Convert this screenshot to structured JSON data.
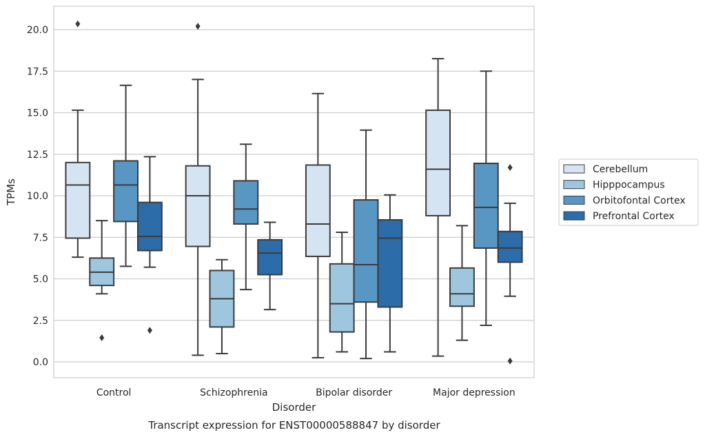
{
  "chart_data": {
    "type": "box",
    "title": "Transcript expression for ENST00000588847 by disorder",
    "xlabel": "Disorder",
    "ylabel": "TPMs",
    "ylim": [
      -0.95,
      21.4
    ],
    "yticks": [
      "0.0",
      "2.5",
      "5.0",
      "7.5",
      "10.0",
      "12.5",
      "15.0",
      "17.5",
      "20.0"
    ],
    "grid": "horizontal",
    "legend_position": "right",
    "categories": [
      "Control",
      "Schizophrenia",
      "Bipolar disorder",
      "Major depression"
    ],
    "series": [
      {
        "name": "Cerebellum",
        "color": "#d5e4f2",
        "boxes": [
          {
            "whisker_low": 6.3,
            "q1": 7.45,
            "median": 10.65,
            "q3": 12.0,
            "whisker_high": 15.15,
            "outliers": [
              20.35
            ]
          },
          {
            "whisker_low": 0.4,
            "q1": 6.95,
            "median": 10.0,
            "q3": 11.8,
            "whisker_high": 17.0,
            "outliers": [
              20.2
            ]
          },
          {
            "whisker_low": 0.25,
            "q1": 6.35,
            "median": 8.3,
            "q3": 11.85,
            "whisker_high": 16.15,
            "outliers": []
          },
          {
            "whisker_low": 0.35,
            "q1": 8.8,
            "median": 11.6,
            "q3": 15.15,
            "whisker_high": 18.25,
            "outliers": []
          }
        ]
      },
      {
        "name": "Hipppocampus",
        "color": "#9ec7df",
        "boxes": [
          {
            "whisker_low": 4.1,
            "q1": 4.6,
            "median": 5.4,
            "q3": 6.25,
            "whisker_high": 8.5,
            "outliers": [
              1.45
            ]
          },
          {
            "whisker_low": 0.5,
            "q1": 2.1,
            "median": 3.8,
            "q3": 5.5,
            "whisker_high": 6.15,
            "outliers": []
          },
          {
            "whisker_low": 0.6,
            "q1": 1.8,
            "median": 3.5,
            "q3": 5.9,
            "whisker_high": 7.8,
            "outliers": []
          },
          {
            "whisker_low": 1.3,
            "q1": 3.35,
            "median": 4.1,
            "q3": 5.65,
            "whisker_high": 8.2,
            "outliers": []
          }
        ]
      },
      {
        "name": "Orbitofontal Cortex",
        "color": "#5897c4",
        "boxes": [
          {
            "whisker_low": 5.75,
            "q1": 8.45,
            "median": 10.65,
            "q3": 12.1,
            "whisker_high": 16.65,
            "outliers": []
          },
          {
            "whisker_low": 4.35,
            "q1": 8.3,
            "median": 9.2,
            "q3": 10.9,
            "whisker_high": 13.1,
            "outliers": []
          },
          {
            "whisker_low": 0.2,
            "q1": 3.6,
            "median": 5.85,
            "q3": 9.75,
            "whisker_high": 13.95,
            "outliers": []
          },
          {
            "whisker_low": 2.2,
            "q1": 6.85,
            "median": 9.3,
            "q3": 11.95,
            "whisker_high": 17.5,
            "outliers": []
          }
        ]
      },
      {
        "name": "Prefrontal Cortex",
        "color": "#2c6ca8",
        "boxes": [
          {
            "whisker_low": 5.7,
            "q1": 6.7,
            "median": 7.55,
            "q3": 9.6,
            "whisker_high": 12.35,
            "outliers": [
              1.9
            ]
          },
          {
            "whisker_low": 3.15,
            "q1": 5.25,
            "median": 6.55,
            "q3": 7.35,
            "whisker_high": 8.4,
            "outliers": []
          },
          {
            "whisker_low": 0.6,
            "q1": 3.3,
            "median": 7.45,
            "q3": 8.55,
            "whisker_high": 10.05,
            "outliers": []
          },
          {
            "whisker_low": 3.95,
            "q1": 6.0,
            "median": 6.85,
            "q3": 7.85,
            "whisker_high": 9.55,
            "outliers": [
              11.7,
              0.05
            ]
          }
        ]
      }
    ]
  }
}
